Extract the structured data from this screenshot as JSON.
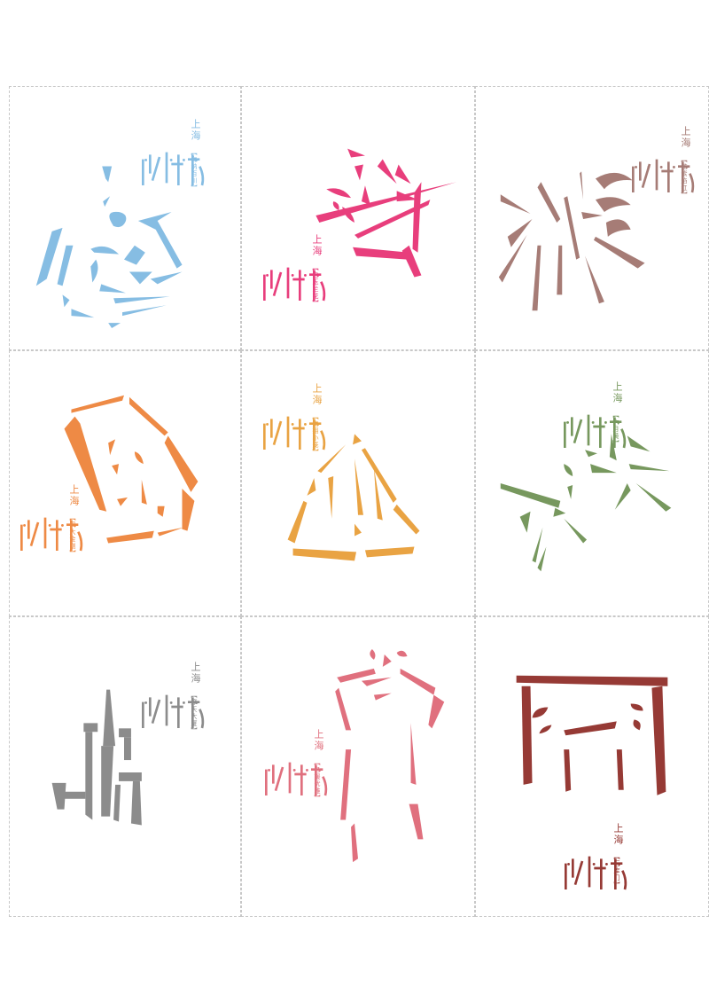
{
  "sheet": {
    "city": "上海",
    "cards": [
      {
        "glyph": "shell-icon",
        "subtitle": "【海纳百川】",
        "color": "#86bde3"
      },
      {
        "glyph": "flower-icon",
        "subtitle": "【白玉兰花】",
        "color": "#e83e7c"
      },
      {
        "glyph": "burst-icon",
        "subtitle": "【炫紫焰红】",
        "color": "#a67c76"
      },
      {
        "glyph": "dumpling-icon",
        "subtitle": "【四大金刚】",
        "color": "#ee8a45"
      },
      {
        "glyph": "bun-icon",
        "subtitle": "【南翔小笼】",
        "color": "#e9a343"
      },
      {
        "glyph": "firework-icon",
        "subtitle": "【六月黄】",
        "color": "#77985e"
      },
      {
        "glyph": "skyline-icon",
        "subtitle": "【摩天大厦】",
        "color": "#8c8c8c"
      },
      {
        "glyph": "qipao-icon",
        "subtitle": "【名媛优雅】",
        "color": "#e0707e"
      },
      {
        "glyph": "shikumen-icon",
        "subtitle": "【石库门】",
        "color": "#963a35"
      }
    ]
  }
}
